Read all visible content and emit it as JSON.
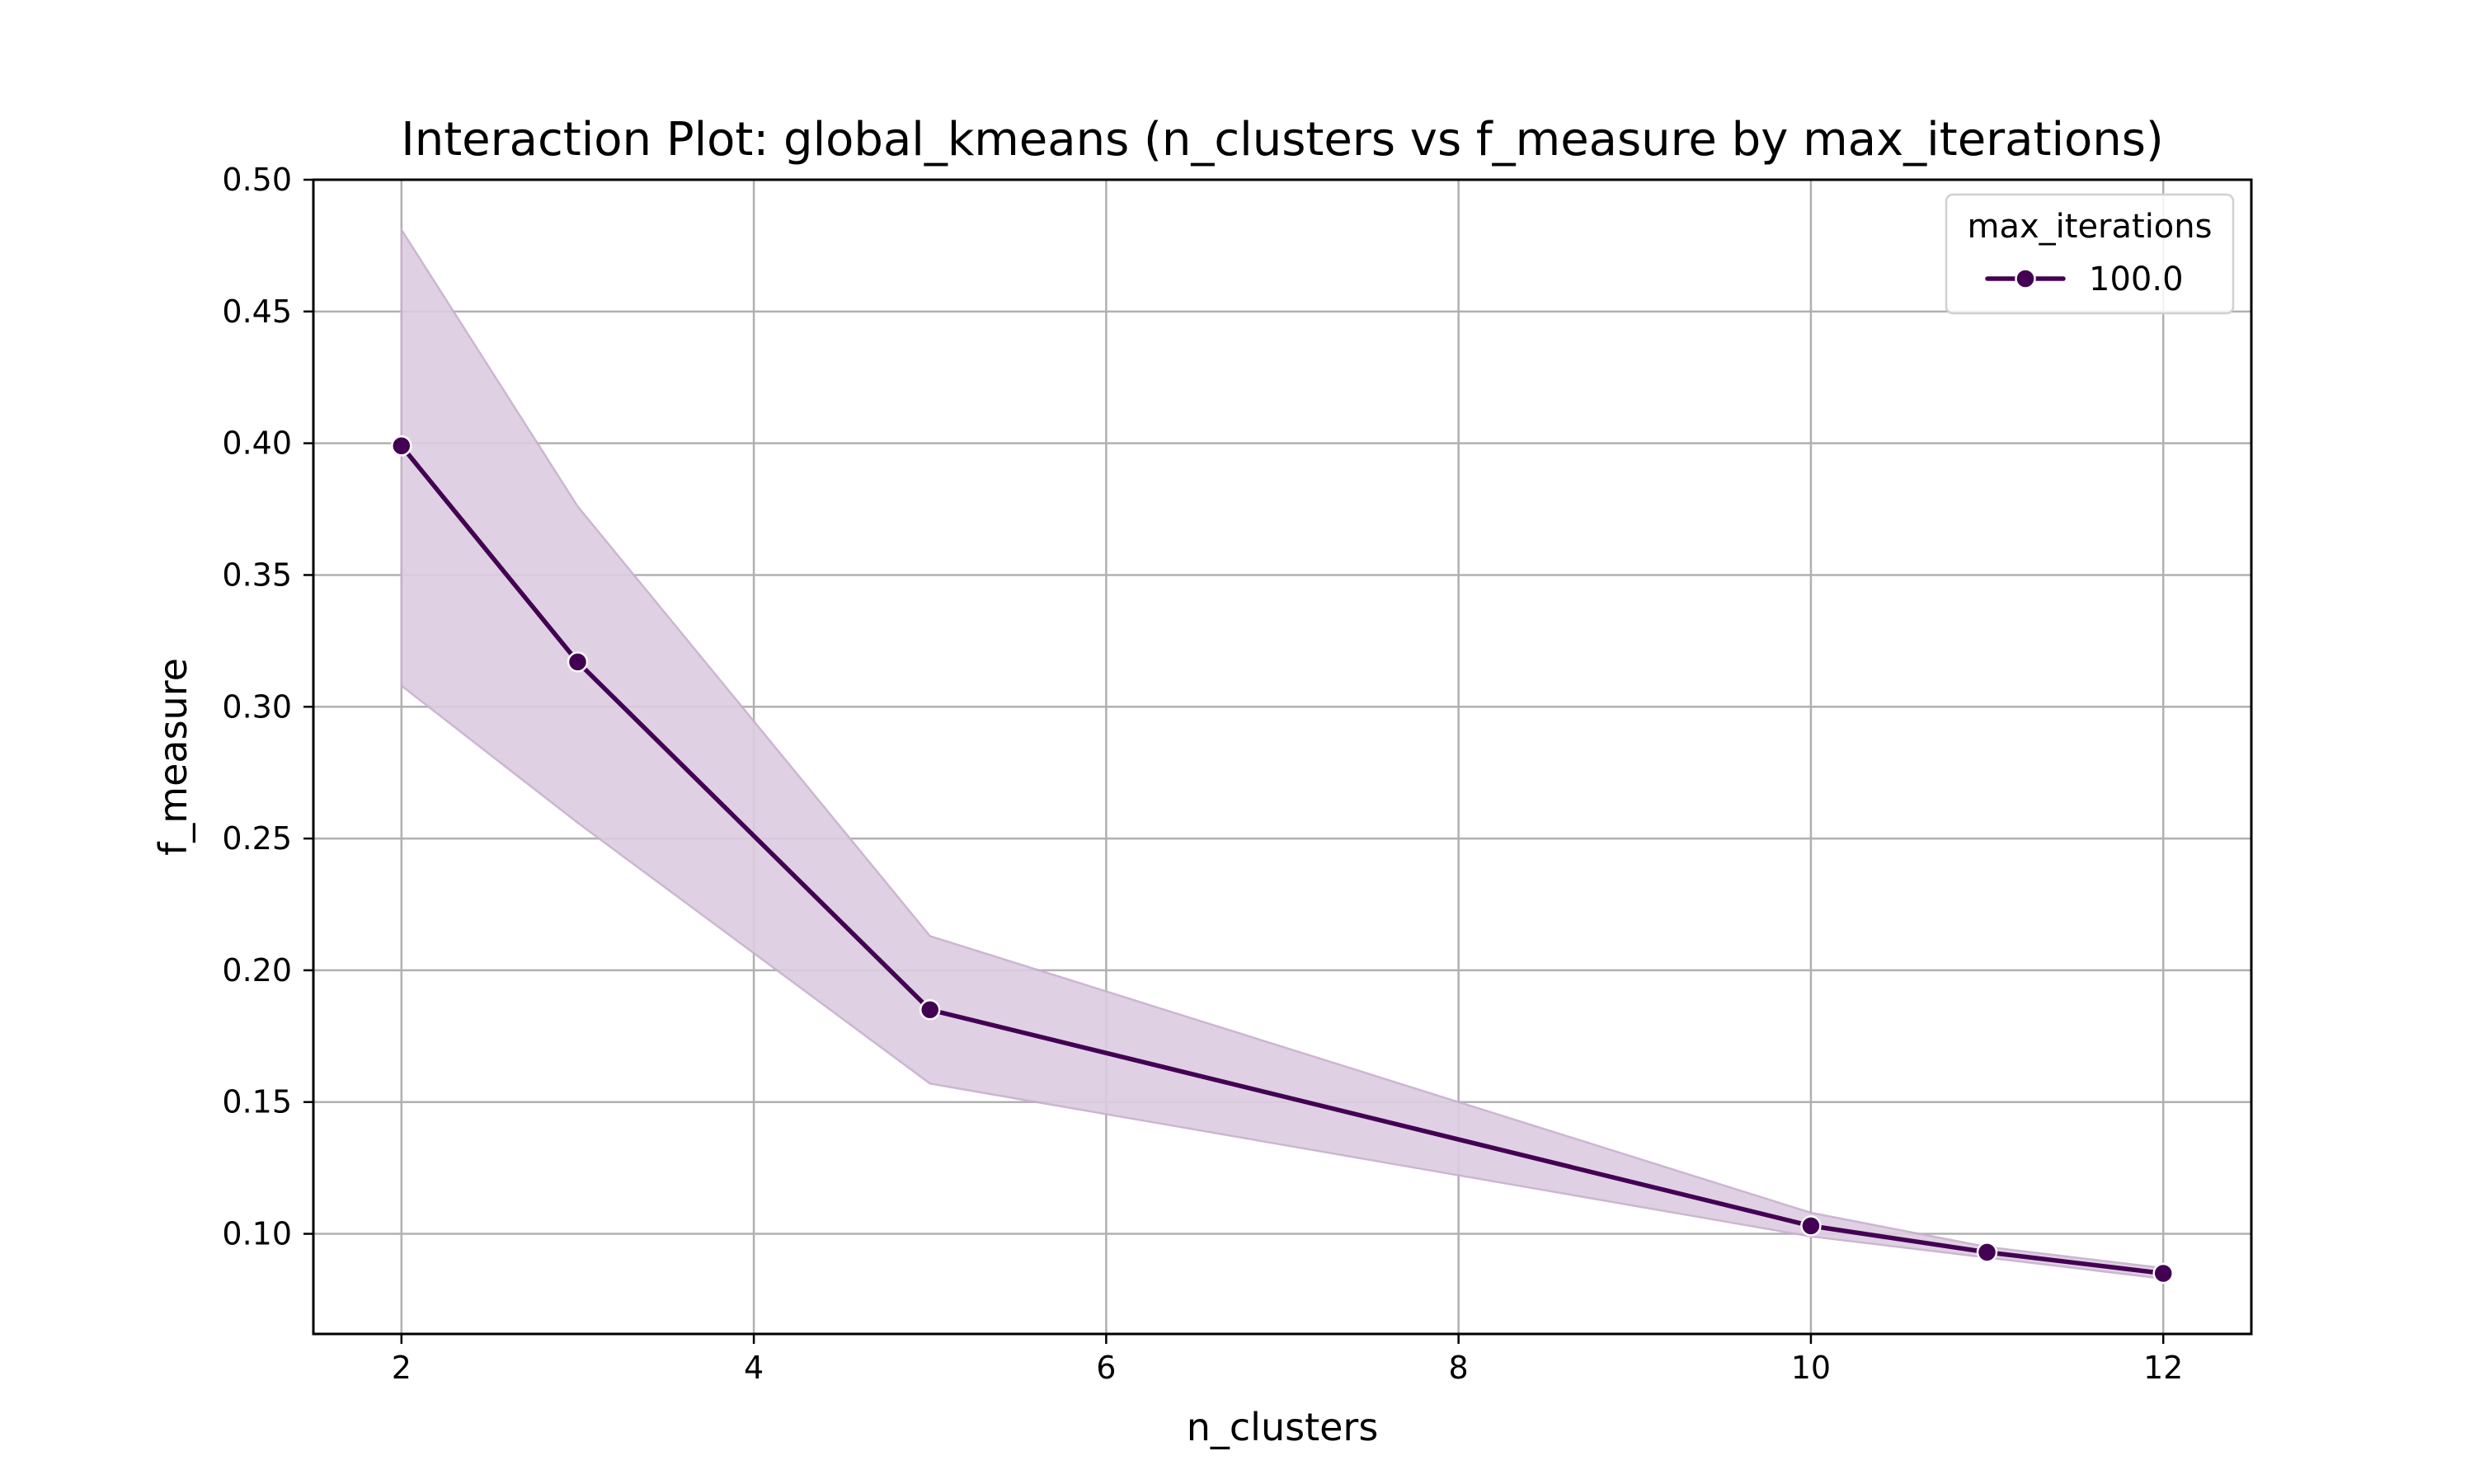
{
  "chart_data": {
    "type": "line",
    "title": "Interaction Plot: global_kmeans (n_clusters vs f_measure by max_iterations)",
    "xlabel": "n_clusters",
    "ylabel": "f_measure",
    "xlim": [
      1.5,
      12.5
    ],
    "ylim": [
      0.062,
      0.5
    ],
    "x_ticks": [
      2,
      4,
      6,
      8,
      10,
      12
    ],
    "x_tick_labels": [
      "2",
      "4",
      "6",
      "8",
      "10",
      "12"
    ],
    "y_ticks": [
      0.1,
      0.15,
      0.2,
      0.25,
      0.3,
      0.35,
      0.4,
      0.45,
      0.5
    ],
    "y_tick_labels": [
      "0.10",
      "0.15",
      "0.20",
      "0.25",
      "0.30",
      "0.35",
      "0.40",
      "0.45",
      "0.50"
    ],
    "grid": true,
    "legend": {
      "title": "max_iterations",
      "placement": "top-right"
    },
    "series": [
      {
        "name": "100.0",
        "color": "#440154",
        "band_color": "#dccde0",
        "x": [
          2,
          3,
          5,
          10,
          11,
          12
        ],
        "y": [
          0.399,
          0.317,
          0.185,
          0.103,
          0.093,
          0.085
        ],
        "ci_lower": [
          0.308,
          0.256,
          0.157,
          0.099,
          0.091,
          0.083
        ],
        "ci_upper": [
          0.481,
          0.376,
          0.213,
          0.108,
          0.095,
          0.087
        ]
      }
    ]
  }
}
